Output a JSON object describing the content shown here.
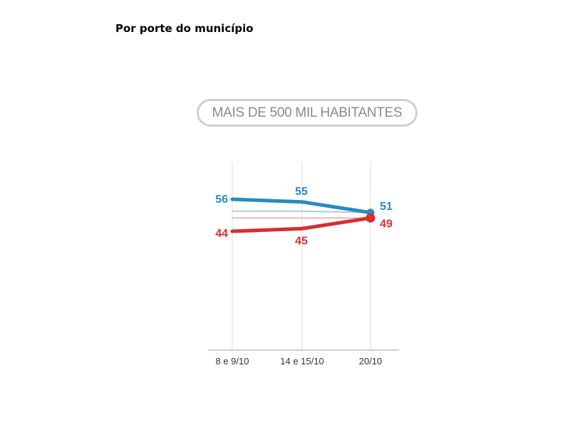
{
  "heading": "Por porte do município",
  "chart_data": {
    "type": "line",
    "title": "MAIS DE 500 MIL HABITANTES",
    "categories": [
      "8 e 9/10",
      "14 e 15/10",
      "20/10"
    ],
    "series": [
      {
        "values": [
          56,
          55,
          51
        ],
        "labels": [
          "56",
          "55",
          "51"
        ],
        "color": "#2a8bbd",
        "faint_color": "#a8cde2"
      },
      {
        "values": [
          44,
          45,
          49
        ],
        "labels": [
          "44",
          "45",
          "49"
        ],
        "color": "#d92d2e",
        "faint_color": "#f1b7b7"
      }
    ],
    "ylim": [
      0,
      100
    ],
    "grid": "vertical",
    "legend": "none"
  }
}
